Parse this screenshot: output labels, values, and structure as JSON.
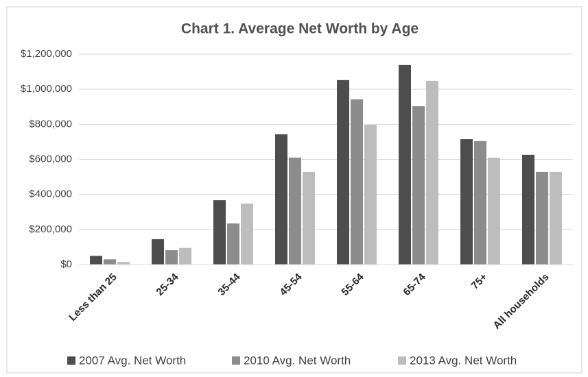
{
  "chart_data": {
    "type": "bar",
    "title": "Chart 1. Average Net Worth by Age",
    "categories": [
      "Less than 25",
      "25-34",
      "35-44",
      "45-54",
      "55-64",
      "65-74",
      "75+",
      "All households"
    ],
    "series": [
      {
        "name": "2007 Avg. Net Worth",
        "color": "#4d4d4d",
        "values": [
          50000,
          145000,
          367000,
          743000,
          1052000,
          1138000,
          715000,
          626000
        ]
      },
      {
        "name": "2010 Avg. Net Worth",
        "color": "#8c8c8c",
        "values": [
          30000,
          82000,
          235000,
          610000,
          942000,
          903000,
          704000,
          528000
        ]
      },
      {
        "name": "2013 Avg. Net Worth",
        "color": "#bdbdbd",
        "values": [
          15000,
          95000,
          348000,
          528000,
          797000,
          1048000,
          610000,
          528000
        ]
      }
    ],
    "ylim": [
      0,
      1200000
    ],
    "yticks": [
      {
        "value": 0,
        "label": "$0"
      },
      {
        "value": 200000,
        "label": "$200,000"
      },
      {
        "value": 400000,
        "label": "$400,000"
      },
      {
        "value": 600000,
        "label": "$600,000"
      },
      {
        "value": 800000,
        "label": "$800,000"
      },
      {
        "value": 1000000,
        "label": "$1,000,000"
      },
      {
        "value": 1200000,
        "label": "$1,200,000"
      }
    ],
    "grid": true,
    "legend": "bottom"
  }
}
